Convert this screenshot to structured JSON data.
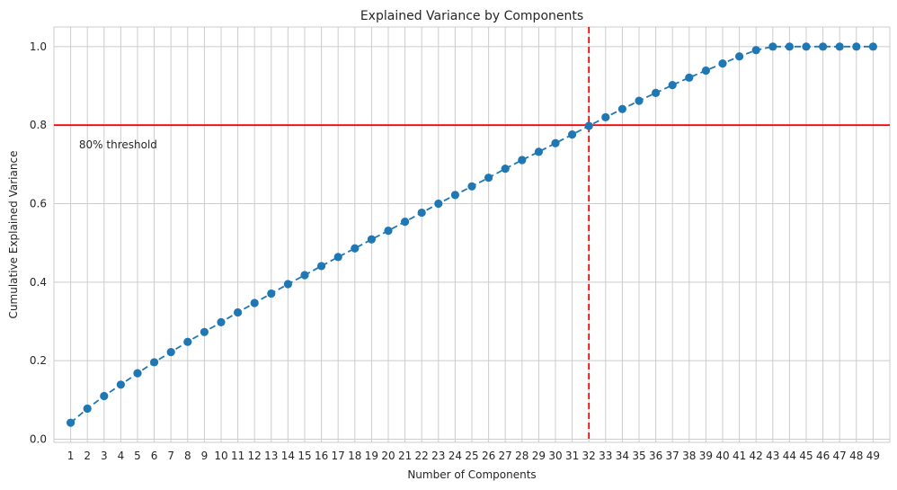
{
  "chart_data": {
    "type": "line",
    "title": "Explained Variance by Components",
    "xlabel": "Number of Components",
    "ylabel": "Cumulative Explained Variance",
    "xlim": [
      0,
      50
    ],
    "ylim": [
      -0.008,
      1.05
    ],
    "x": [
      1,
      2,
      3,
      4,
      5,
      6,
      7,
      8,
      9,
      10,
      11,
      12,
      13,
      14,
      15,
      16,
      17,
      18,
      19,
      20,
      21,
      22,
      23,
      24,
      25,
      26,
      27,
      28,
      29,
      30,
      31,
      32,
      33,
      34,
      35,
      36,
      37,
      38,
      39,
      40,
      41,
      42,
      43,
      44,
      45,
      46,
      47,
      48,
      49
    ],
    "xticks": [
      "1",
      "2",
      "3",
      "4",
      "5",
      "6",
      "7",
      "8",
      "9",
      "10",
      "11",
      "12",
      "13",
      "14",
      "15",
      "16",
      "17",
      "18",
      "19",
      "20",
      "21",
      "22",
      "23",
      "24",
      "25",
      "26",
      "27",
      "28",
      "29",
      "30",
      "31",
      "32",
      "33",
      "34",
      "35",
      "36",
      "37",
      "38",
      "39",
      "40",
      "41",
      "42",
      "43",
      "44",
      "45",
      "46",
      "47",
      "48",
      "49"
    ],
    "yticks": [
      0.0,
      0.2,
      0.4,
      0.6,
      0.8,
      1.0
    ],
    "ytick_labels": [
      "0.0",
      "0.2",
      "0.4",
      "0.6",
      "0.8",
      "1.0"
    ],
    "grid": true,
    "series": [
      {
        "name": "",
        "color": "#1f77b4",
        "linestyle": "dashed",
        "marker": "circle",
        "values": [
          0.042,
          0.078,
          0.11,
          0.139,
          0.168,
          0.196,
          0.222,
          0.248,
          0.273,
          0.298,
          0.323,
          0.347,
          0.371,
          0.395,
          0.418,
          0.441,
          0.464,
          0.486,
          0.509,
          0.531,
          0.554,
          0.577,
          0.6,
          0.622,
          0.644,
          0.666,
          0.689,
          0.711,
          0.732,
          0.754,
          0.776,
          0.798,
          0.82,
          0.841,
          0.862,
          0.882,
          0.902,
          0.921,
          0.939,
          0.957,
          0.975,
          0.991,
          1.0,
          1.0,
          1.0,
          1.0,
          1.0,
          1.0,
          1.0
        ]
      }
    ],
    "reference_lines": {
      "horizontal": {
        "y": 0.8,
        "color": "#ff0000",
        "style": "solid"
      },
      "vertical": {
        "x": 32,
        "color": "#ff0000",
        "style": "dashed"
      }
    },
    "annotations": [
      {
        "text": "80% threshold",
        "x": 1.5,
        "y": 0.75
      }
    ]
  }
}
